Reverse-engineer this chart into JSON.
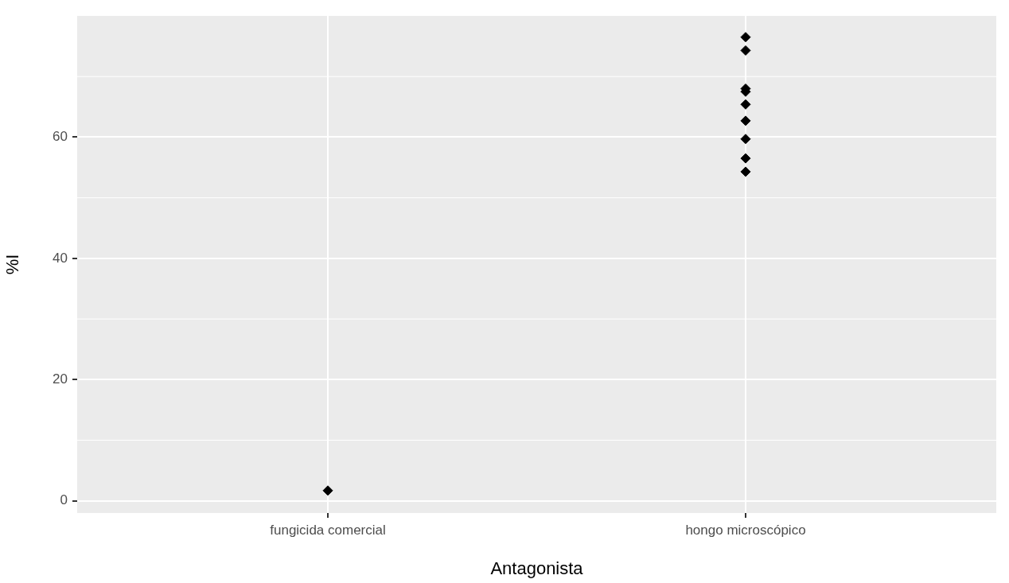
{
  "chart_data": {
    "type": "scatter",
    "xlabel": "Antagonista",
    "ylabel": "%I",
    "categories": [
      "fungicida comercial",
      "hongo microscópico"
    ],
    "series": [
      {
        "color": "#000000",
        "x": [
          "fungicida comercial",
          "hongo microscópico",
          "hongo microscópico",
          "hongo microscópico",
          "hongo microscópico",
          "hongo microscópico",
          "hongo microscópico",
          "hongo microscópico",
          "hongo microscópico",
          "hongo microscópico"
        ],
        "values": [
          1.7,
          76.5,
          74.3,
          68.0,
          67.5,
          65.4,
          62.7,
          59.7,
          56.5,
          54.3
        ]
      }
    ],
    "ylim": [
      -2,
      80
    ],
    "yticks": [
      0,
      20,
      40,
      60
    ],
    "grid": true,
    "marker": "diamond",
    "legend": false
  }
}
